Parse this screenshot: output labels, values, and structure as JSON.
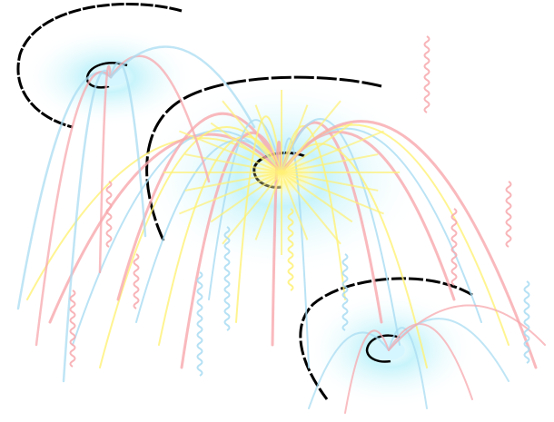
{
  "scene": {
    "background": "#ffffff",
    "colors": {
      "pink": "#f7a8ad",
      "yellow": "#fff176",
      "blue": "#a9dcf2",
      "glow": "#c8f4fb",
      "outline": "#000000"
    },
    "bursts": [
      {
        "name": "small-upper-left-burst",
        "color_scheme": "pink-blue"
      },
      {
        "name": "large-center-burst",
        "color_scheme": "yellow-pink-blue"
      },
      {
        "name": "small-lower-right-burst",
        "color_scheme": "blue-pink"
      }
    ]
  }
}
